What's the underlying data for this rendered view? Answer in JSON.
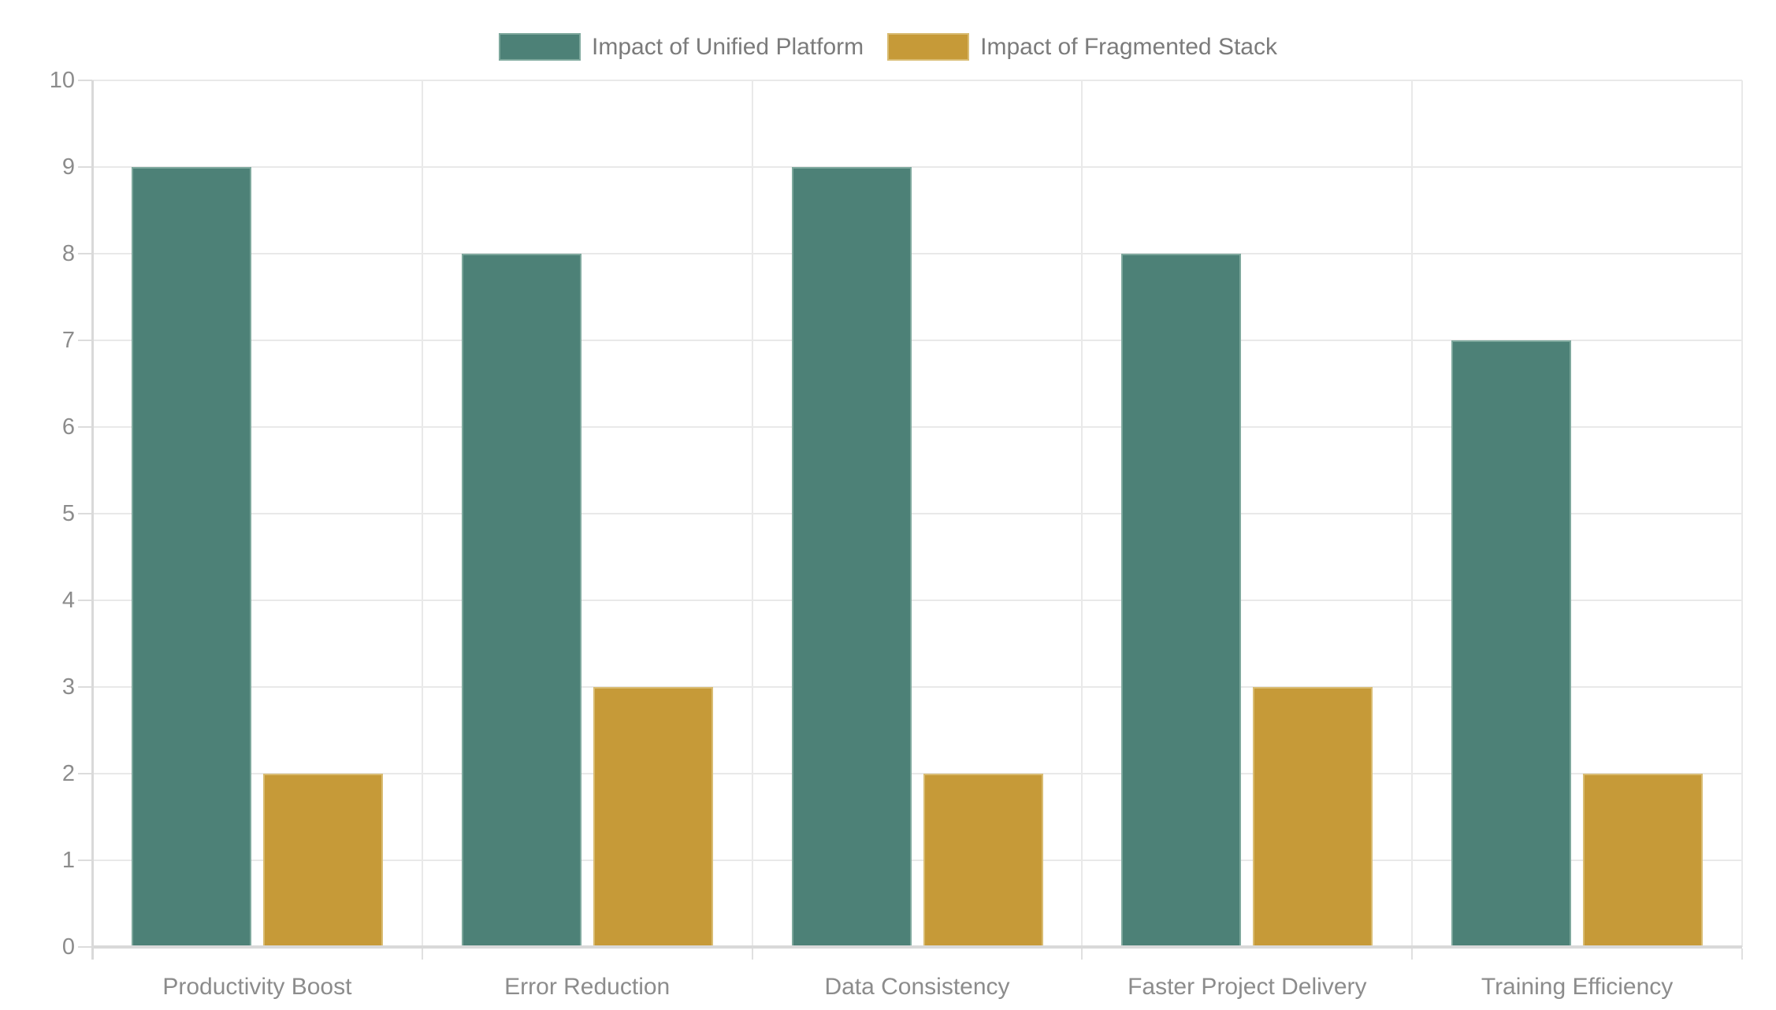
{
  "chart_data": {
    "type": "bar",
    "categories": [
      "Productivity Boost",
      "Error Reduction",
      "Data Consistency",
      "Faster Project Delivery",
      "Training Efficiency"
    ],
    "series": [
      {
        "name": "Impact of Unified Platform",
        "color": "#4d8177",
        "border_color": "#7ea89d",
        "values": [
          9,
          8,
          9,
          8,
          7
        ]
      },
      {
        "name": "Impact of Fragmented Stack",
        "color": "#c69a38",
        "border_color": "#d9bc72",
        "values": [
          2,
          3,
          2,
          3,
          2
        ]
      }
    ],
    "title": "",
    "xlabel": "",
    "ylabel": "",
    "ylim": [
      0,
      10
    ],
    "y_ticks": [
      0,
      1,
      2,
      3,
      4,
      5,
      6,
      7,
      8,
      9,
      10
    ],
    "grid": true,
    "legend_position": "top"
  },
  "colors": {
    "grid": "#e9e9e9",
    "axis": "#d9d9d9",
    "tick_label": "#8c8c8c",
    "legend_text": "#7b7b7b",
    "background": "#ffffff"
  }
}
